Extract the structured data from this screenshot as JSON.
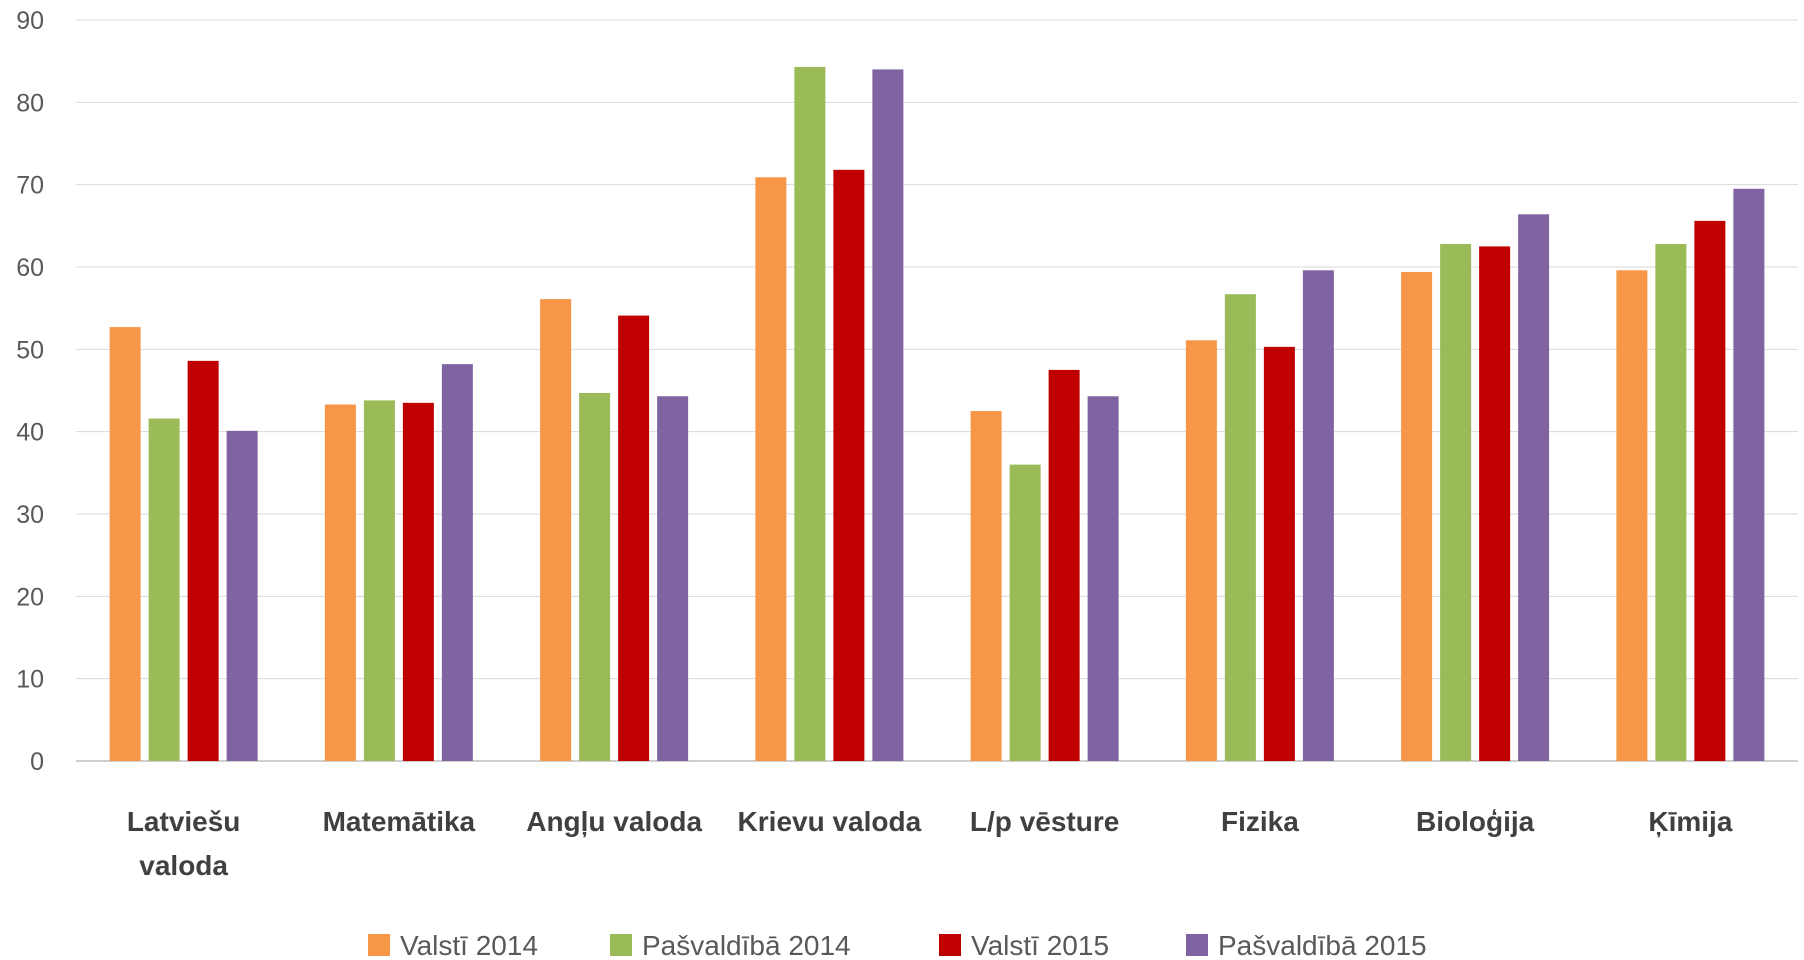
{
  "chart_data": {
    "type": "bar",
    "title": "",
    "xlabel": "",
    "ylabel": "",
    "ylim": [
      0,
      90
    ],
    "yticks": [
      0,
      10,
      20,
      30,
      40,
      50,
      60,
      70,
      80,
      90
    ],
    "grid": true,
    "legend_position": "bottom",
    "categories": [
      [
        "Latviešu",
        "valoda"
      ],
      [
        "Matemātika"
      ],
      [
        "Angļu valoda"
      ],
      [
        "Krievu valoda"
      ],
      [
        "L/p vēsture"
      ],
      [
        "Fizika"
      ],
      [
        "Bioloģija"
      ],
      [
        "Ķīmija"
      ]
    ],
    "series": [
      {
        "name": "Valstī 2014",
        "color": "#F79646",
        "values": [
          52.7,
          43.3,
          56.1,
          70.9,
          42.5,
          51.1,
          59.4,
          59.6
        ]
      },
      {
        "name": "Pašvaldībā 2014",
        "color": "#9BBB59",
        "values": [
          41.6,
          43.8,
          44.7,
          84.3,
          36.0,
          56.7,
          62.8,
          62.8
        ]
      },
      {
        "name": "Valstī 2015",
        "color": "#C00000",
        "values": [
          48.6,
          43.5,
          54.1,
          71.8,
          47.5,
          50.3,
          62.5,
          65.6
        ]
      },
      {
        "name": "Pašvaldībā 2015",
        "color": "#8064A2",
        "values": [
          40.1,
          48.2,
          44.3,
          84.0,
          44.3,
          59.6,
          66.4,
          69.5
        ]
      }
    ]
  }
}
